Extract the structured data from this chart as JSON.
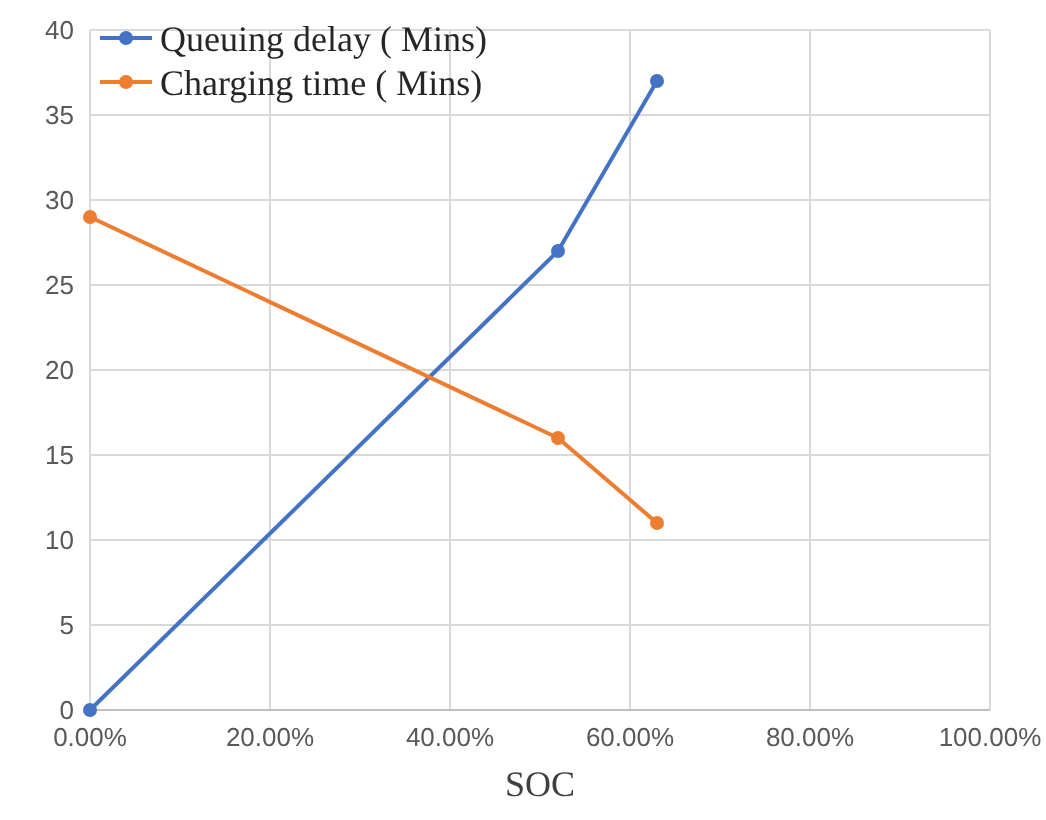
{
  "chart_data": {
    "type": "line",
    "xlabel": "SOC",
    "series": [
      {
        "name": "Queuing delay ( Mins)",
        "color": "#4472c4",
        "x": [
          0,
          52,
          63
        ],
        "values": [
          0,
          27,
          37
        ]
      },
      {
        "name": "Charging time ( Mins)",
        "color": "#ed7d31",
        "x": [
          0,
          52,
          63
        ],
        "values": [
          29,
          16,
          11
        ]
      }
    ],
    "xlim": [
      0,
      100
    ],
    "xticks": [
      {
        "value": 0,
        "label": "0.00%"
      },
      {
        "value": 20,
        "label": "20.00%"
      },
      {
        "value": 40,
        "label": "40.00%"
      },
      {
        "value": 60,
        "label": "60.00%"
      },
      {
        "value": 80,
        "label": "80.00%"
      },
      {
        "value": 100,
        "label": "100.00%"
      }
    ],
    "ylim": [
      0,
      40
    ],
    "yticks": [
      0,
      5,
      10,
      15,
      20,
      25,
      30,
      35,
      40
    ],
    "grid": true,
    "legend": "top left",
    "marker": "circle",
    "line_style": "solid"
  }
}
